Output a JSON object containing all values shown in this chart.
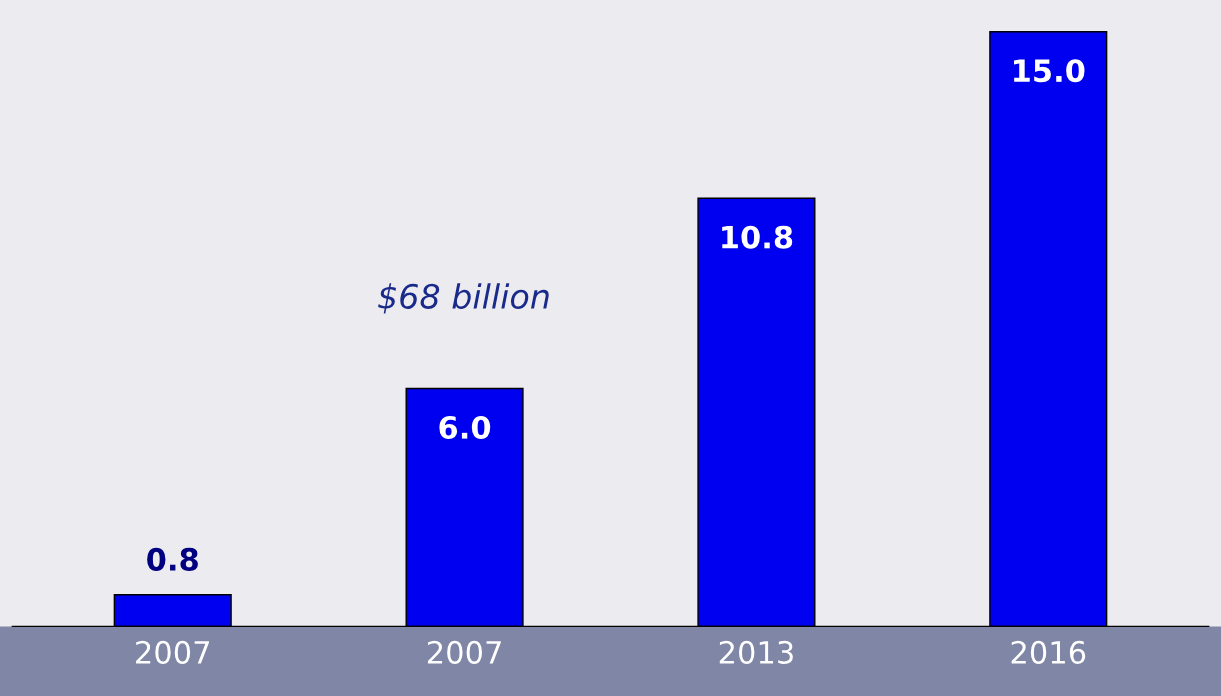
{
  "chart_data": {
    "type": "bar",
    "categories": [
      "2007",
      "2007",
      "2013",
      "2016"
    ],
    "values": [
      0.8,
      6.0,
      10.8,
      15.0
    ],
    "color": "#0000f0",
    "value_labels": [
      "0.8",
      "6.0",
      "10.8",
      "15.0"
    ],
    "annotations": [
      "$68 billion"
    ],
    "grid": false,
    "legend": false
  }
}
